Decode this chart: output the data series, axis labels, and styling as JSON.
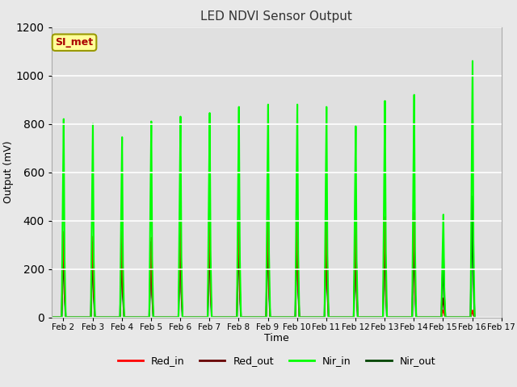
{
  "title": "LED NDVI Sensor Output",
  "xlabel": "Time",
  "ylabel": "Output (mV)",
  "ylim": [
    0,
    1200
  ],
  "xlim_days": [
    1.6,
    17.0
  ],
  "x_tick_labels": [
    "Feb 2",
    "Feb 3",
    "Feb 4",
    "Feb 5",
    "Feb 6",
    "Feb 7",
    "Feb 8",
    "Feb 9",
    "Feb 10",
    "Feb 11",
    "Feb 12",
    "Feb 13",
    "Feb 14",
    "Feb 15",
    "Feb 16",
    "Feb 17"
  ],
  "x_tick_positions": [
    2,
    3,
    4,
    5,
    6,
    7,
    8,
    9,
    10,
    11,
    12,
    13,
    14,
    15,
    16,
    17
  ],
  "annotation_text": "SI_met",
  "annotation_bg": "#ffff99",
  "annotation_border": "#999900",
  "annotation_text_color": "#aa0000",
  "fig_bg_color": "#e8e8e8",
  "plot_bg_color": "#e0e0e0",
  "grid_color": "#ffffff",
  "colors": {
    "Red_in": "#ff0000",
    "Red_out": "#660000",
    "Nir_in": "#00ff00",
    "Nir_out": "#004400"
  },
  "daily_peaks": {
    "Red_in": [
      355,
      335,
      355,
      330,
      400,
      400,
      395,
      400,
      400,
      400,
      405,
      415,
      435,
      30,
      30
    ],
    "Red_out": [
      325,
      310,
      300,
      315,
      345,
      355,
      385,
      390,
      385,
      390,
      370,
      380,
      400,
      80,
      25
    ],
    "Nir_in": [
      820,
      800,
      745,
      810,
      830,
      845,
      870,
      880,
      880,
      870,
      790,
      895,
      920,
      425,
      1060
    ],
    "Nir_out": [
      330,
      310,
      295,
      310,
      350,
      360,
      390,
      395,
      390,
      395,
      365,
      370,
      355,
      265,
      500
    ]
  },
  "days": [
    2,
    3,
    4,
    5,
    6,
    7,
    8,
    9,
    10,
    11,
    12,
    13,
    14,
    15,
    16
  ]
}
